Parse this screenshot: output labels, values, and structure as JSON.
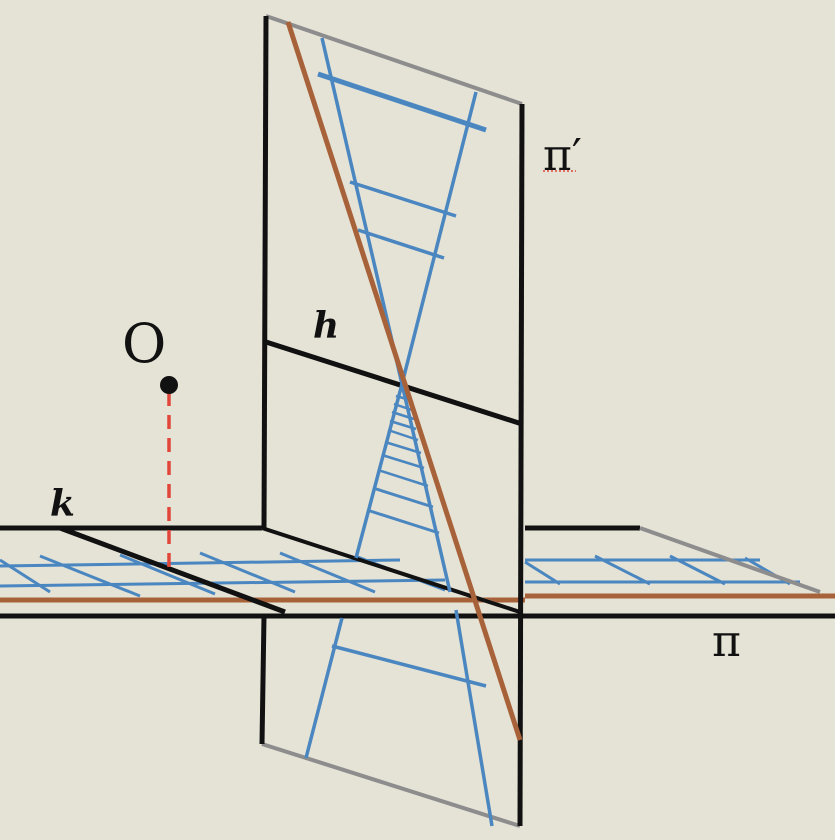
{
  "labels": {
    "plane_pi": "π",
    "plane_pi_prime": "π′",
    "point_o": "O",
    "line_h": "h",
    "line_k": "k"
  },
  "colors": {
    "background": "#e5e2d6",
    "ink": "#111111",
    "blue": "#4a86c0",
    "brown": "#a8623a",
    "dashed": "#e0473a",
    "edge_gray": "#8d8d8d"
  }
}
